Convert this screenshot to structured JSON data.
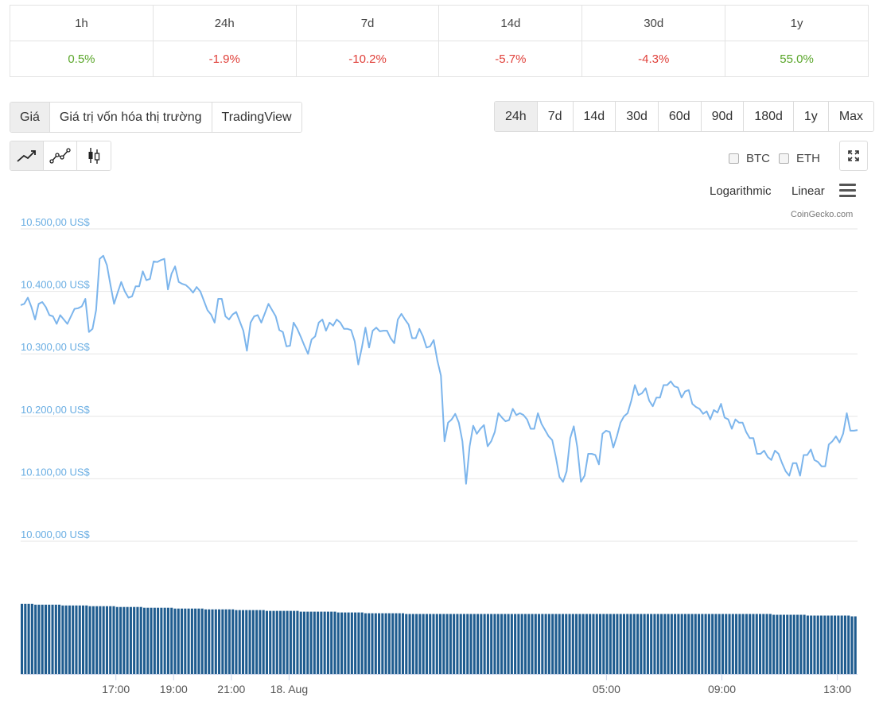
{
  "change_table": {
    "headers": [
      "1h",
      "24h",
      "7d",
      "14d",
      "30d",
      "1y"
    ],
    "values": [
      "0.5%",
      "-1.9%",
      "-10.2%",
      "-5.7%",
      "-4.3%",
      "55.0%"
    ],
    "value_colors": {
      "positive": "#5aa62a",
      "negative": "#e0403a"
    }
  },
  "metric_tabs": {
    "items": [
      "Giá",
      "Giá trị vốn hóa thị trường",
      "TradingView"
    ],
    "active": "Giá"
  },
  "range_tabs": {
    "items": [
      "24h",
      "7d",
      "14d",
      "30d",
      "60d",
      "90d",
      "180d",
      "1y",
      "Max"
    ],
    "active": "24h"
  },
  "chart_styles": {
    "items": [
      "line-chart-icon",
      "point-line-chart-icon",
      "candlestick-icon"
    ],
    "active": "line-chart-icon"
  },
  "compare": {
    "btc": "BTC",
    "eth": "ETH"
  },
  "scale_options": {
    "log": "Logarithmic",
    "linear": "Linear",
    "active": "Linear"
  },
  "menu_icon": "hamburger-menu-icon",
  "fullscreen_icon": "expand-icon",
  "credit": "CoinGecko.com",
  "chart_data": {
    "type": "line",
    "title": "",
    "xlabel": "",
    "ylabel": "",
    "ylim": [
      10000,
      10500
    ],
    "y_ticks": [
      "10.500,00 US$",
      "10.400,00 US$",
      "10.300,00 US$",
      "10.200,00 US$",
      "10.100,00 US$",
      "10.000,00 US$"
    ],
    "y_tick_values": [
      10500,
      10400,
      10300,
      10200,
      10100,
      10000
    ],
    "x_ticks": [
      "17:00",
      "19:00",
      "21:00",
      "18. Aug",
      "05:00",
      "09:00",
      "13:00"
    ],
    "x_tick_hours": [
      3.3,
      5.3,
      7.3,
      9.3,
      20.3,
      24.3,
      28.3
    ],
    "x_range_hours": [
      0,
      29.0
    ],
    "line_color": "#7cb5ec",
    "grid": true,
    "legend": "none",
    "series": [
      {
        "values": [
          10378,
          10380,
          10390,
          10375,
          10355,
          10380,
          10383,
          10375,
          10362,
          10360,
          10348,
          10362,
          10355,
          10348,
          10360,
          10372,
          10373,
          10376,
          10388,
          10335,
          10340,
          10370,
          10452,
          10457,
          10442,
          10410,
          10380,
          10398,
          10415,
          10400,
          10390,
          10392,
          10408,
          10408,
          10432,
          10418,
          10420,
          10448,
          10447,
          10450,
          10452,
          10403,
          10428,
          10440,
          10415,
          10412,
          10410,
          10405,
          10398,
          10407,
          10400,
          10385,
          10370,
          10363,
          10350,
          10388,
          10388,
          10360,
          10355,
          10363,
          10367,
          10352,
          10337,
          10305,
          10350,
          10360,
          10362,
          10350,
          10365,
          10380,
          10370,
          10360,
          10338,
          10335,
          10312,
          10313,
          10350,
          10340,
          10327,
          10313,
          10300,
          10323,
          10328,
          10350,
          10355,
          10337,
          10350,
          10345,
          10355,
          10350,
          10340,
          10340,
          10338,
          10320,
          10283,
          10310,
          10342,
          10310,
          10337,
          10342,
          10336,
          10337,
          10337,
          10325,
          10317,
          10355,
          10364,
          10355,
          10347,
          10325,
          10325,
          10340,
          10328,
          10310,
          10312,
          10322,
          10290,
          10265,
          10160,
          10190,
          10195,
          10204,
          10190,
          10160,
          10092,
          10152,
          10185,
          10172,
          10180,
          10186,
          10152,
          10160,
          10175,
          10205,
          10198,
          10192,
          10194,
          10212,
          10202,
          10205,
          10202,
          10195,
          10180,
          10180,
          10205,
          10188,
          10178,
          10168,
          10162,
          10135,
          10103,
          10095,
          10112,
          10165,
          10184,
          10150,
          10095,
          10105,
          10140,
          10140,
          10138,
          10123,
          10172,
          10177,
          10175,
          10150,
          10168,
          10190,
          10200,
          10205,
          10225,
          10250,
          10234,
          10237,
          10245,
          10225,
          10216,
          10230,
          10230,
          10250,
          10250,
          10256,
          10248,
          10246,
          10230,
          10240,
          10242,
          10220,
          10215,
          10212,
          10204,
          10208,
          10195,
          10210,
          10206,
          10220,
          10198,
          10195,
          10180,
          10195,
          10190,
          10190,
          10175,
          10165,
          10165,
          10140,
          10140,
          10145,
          10135,
          10130,
          10145,
          10140,
          10125,
          10112,
          10105,
          10125,
          10125,
          10105,
          10138,
          10138,
          10147,
          10130,
          10127,
          10120,
          10120,
          10155,
          10160,
          10168,
          10158,
          10172,
          10205,
          10177,
          10177,
          10178
        ]
      }
    ],
    "volume": {
      "bar_color": "#1f5c8f",
      "values": [
        90,
        90,
        90,
        90,
        89,
        89,
        89,
        89,
        89,
        89,
        89,
        89,
        88,
        88,
        88,
        88,
        88,
        88,
        88,
        88,
        87,
        87,
        87,
        87,
        87,
        87,
        87,
        87,
        86,
        86,
        86,
        86,
        86,
        86,
        86,
        86,
        85,
        85,
        85,
        85,
        85,
        85,
        85,
        85,
        85,
        84,
        84,
        84,
        84,
        84,
        84,
        84,
        84,
        84,
        83,
        83,
        83,
        83,
        83,
        83,
        83,
        83,
        83,
        82,
        82,
        82,
        82,
        82,
        82,
        82,
        82,
        82,
        81,
        81,
        81,
        81,
        81,
        81,
        81,
        81,
        81,
        81,
        80,
        80,
        80,
        80,
        80,
        80,
        80,
        80,
        80,
        80,
        80,
        79,
        79,
        79,
        79,
        79,
        79,
        79,
        79,
        78,
        78,
        78,
        78,
        78,
        78,
        78,
        78,
        78,
        78,
        78,
        78,
        77,
        77,
        77,
        77,
        77,
        77,
        77,
        77,
        77,
        77,
        77,
        77,
        77,
        77,
        77,
        77,
        77,
        77,
        77,
        77,
        77,
        77,
        77,
        77,
        77,
        77,
        77,
        77,
        77,
        77,
        77,
        77,
        77,
        77,
        77,
        77,
        77,
        77,
        77,
        77,
        77,
        77,
        77,
        77,
        77,
        77,
        77,
        77,
        77,
        77,
        77,
        77,
        77,
        77,
        77,
        77,
        77,
        77,
        77,
        77,
        77,
        77,
        77,
        77,
        77,
        77,
        77,
        77,
        77,
        77,
        77,
        77,
        77,
        77,
        77,
        77,
        77,
        77,
        77,
        77,
        77,
        77,
        77,
        77,
        77,
        77,
        77,
        77,
        77,
        77,
        77,
        77,
        77,
        77,
        77,
        77,
        77,
        77,
        77,
        77,
        77,
        77,
        77,
        77,
        77,
        77,
        77,
        77,
        76,
        76,
        76,
        76,
        76,
        76,
        76,
        76,
        76,
        76,
        75,
        75,
        75,
        75,
        75,
        75,
        75,
        75,
        75,
        75,
        75,
        75,
        75,
        74,
        74
      ]
    }
  }
}
